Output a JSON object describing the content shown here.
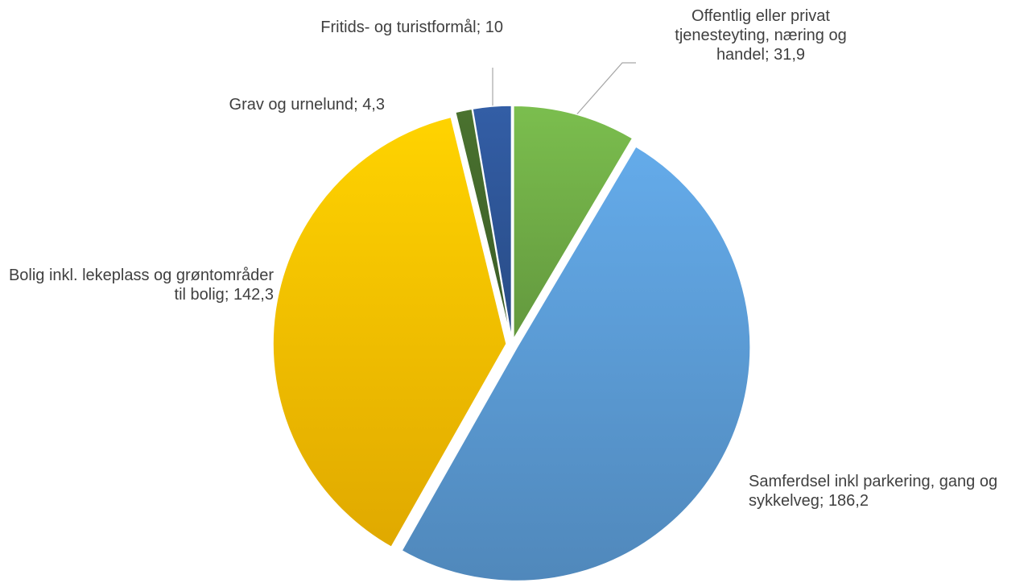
{
  "chart_data": {
    "type": "pie",
    "categories": [
      "Offentlig eller privat tjenesteyting, næring og handel",
      "Samferdsel inkl parkering, gang og sykkelveg",
      "Bolig inkl. lekeplass og grøntområder til bolig",
      "Grav og urnelund",
      "Fritids- og turistformål"
    ],
    "values": [
      31.9,
      186.2,
      142.3,
      4.3,
      10
    ],
    "value_labels": [
      "31,9",
      "186,2",
      "142,3",
      "4,3",
      "10"
    ],
    "separator": "; ",
    "colors": [
      "#70ad47",
      "#5b9bd5",
      "#ffc000",
      "#43682b",
      "#2e5597"
    ]
  }
}
